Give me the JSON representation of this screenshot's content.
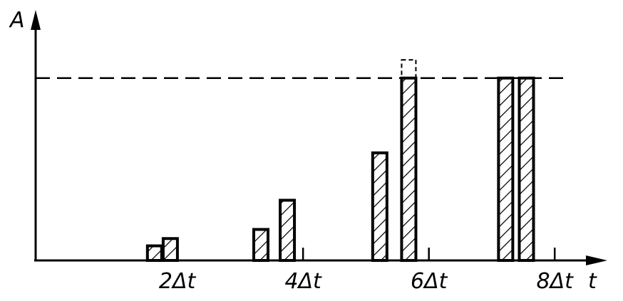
{
  "chart_data": {
    "type": "bar",
    "xlabel": "t",
    "ylabel": "A",
    "x_ticks": [
      {
        "x": 2,
        "label": "2Δt"
      },
      {
        "x": 4,
        "label": "4Δt"
      },
      {
        "x": 6,
        "label": "6Δt"
      },
      {
        "x": 8,
        "label": "8Δt"
      }
    ],
    "xlim": [
      -0.25,
      8.7
    ],
    "ylim": [
      0,
      1.35
    ],
    "limit_level": 1.0,
    "bars": [
      {
        "x": 1.64,
        "value": 0.08
      },
      {
        "x": 1.89,
        "value": 0.12
      },
      {
        "x": 3.33,
        "value": 0.17
      },
      {
        "x": 3.75,
        "value": 0.33
      },
      {
        "x": 5.22,
        "value": 0.59
      },
      {
        "x": 5.68,
        "value": 1.0,
        "exceeds_to": 1.1
      },
      {
        "x": 7.22,
        "value": 1.0
      },
      {
        "x": 7.55,
        "value": 1.0
      }
    ],
    "style": {
      "hatch": "diagonal",
      "color": "#000000"
    }
  }
}
